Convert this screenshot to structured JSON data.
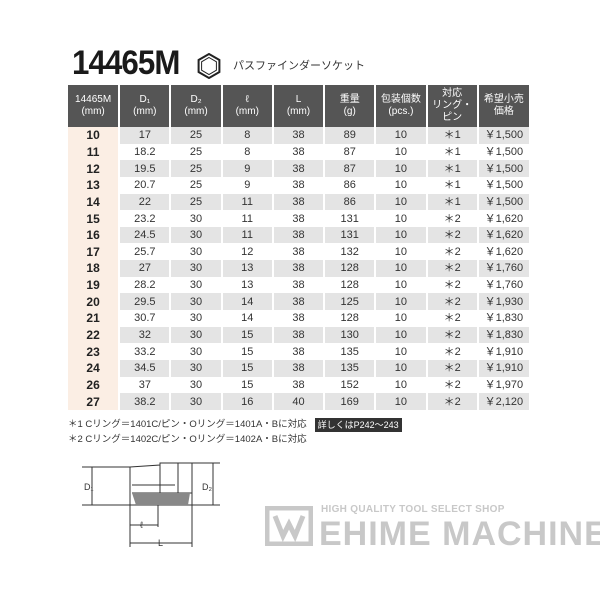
{
  "title": "14465M",
  "subtitle": "パスファインダーソケット",
  "icons": {
    "hex": "hexagon-socket-icon"
  },
  "table": {
    "headers": [
      [
        "14465M",
        "(mm)"
      ],
      [
        "D₁",
        "(mm)"
      ],
      [
        "D₂",
        "(mm)"
      ],
      [
        "ℓ",
        "(mm)"
      ],
      [
        "L",
        "(mm)"
      ],
      [
        "重量",
        "(g)"
      ],
      [
        "包装個数",
        "(pcs.)"
      ],
      [
        "対応",
        "リング・ピン"
      ],
      [
        "希望小売",
        "価格"
      ]
    ],
    "rows": [
      [
        "10",
        "17",
        "25",
        "8",
        "38",
        "89",
        "10",
        "＊1",
        "￥1,500"
      ],
      [
        "11",
        "18.2",
        "25",
        "8",
        "38",
        "87",
        "10",
        "＊1",
        "￥1,500"
      ],
      [
        "12",
        "19.5",
        "25",
        "9",
        "38",
        "87",
        "10",
        "＊1",
        "￥1,500"
      ],
      [
        "13",
        "20.7",
        "25",
        "9",
        "38",
        "86",
        "10",
        "＊1",
        "￥1,500"
      ],
      [
        "14",
        "22",
        "25",
        "11",
        "38",
        "86",
        "10",
        "＊1",
        "￥1,500"
      ],
      [
        "15",
        "23.2",
        "30",
        "11",
        "38",
        "131",
        "10",
        "＊2",
        "￥1,620"
      ],
      [
        "16",
        "24.5",
        "30",
        "11",
        "38",
        "131",
        "10",
        "＊2",
        "￥1,620"
      ],
      [
        "17",
        "25.7",
        "30",
        "12",
        "38",
        "132",
        "10",
        "＊2",
        "￥1,620"
      ],
      [
        "18",
        "27",
        "30",
        "13",
        "38",
        "128",
        "10",
        "＊2",
        "￥1,760"
      ],
      [
        "19",
        "28.2",
        "30",
        "13",
        "38",
        "128",
        "10",
        "＊2",
        "￥1,760"
      ],
      [
        "20",
        "29.5",
        "30",
        "14",
        "38",
        "125",
        "10",
        "＊2",
        "￥1,930"
      ],
      [
        "21",
        "30.7",
        "30",
        "14",
        "38",
        "128",
        "10",
        "＊2",
        "￥1,830"
      ],
      [
        "22",
        "32",
        "30",
        "15",
        "38",
        "130",
        "10",
        "＊2",
        "￥1,830"
      ],
      [
        "23",
        "33.2",
        "30",
        "15",
        "38",
        "135",
        "10",
        "＊2",
        "￥1,910"
      ],
      [
        "24",
        "34.5",
        "30",
        "15",
        "38",
        "135",
        "10",
        "＊2",
        "￥1,910"
      ],
      [
        "26",
        "37",
        "30",
        "15",
        "38",
        "152",
        "10",
        "＊2",
        "￥1,970"
      ],
      [
        "27",
        "38.2",
        "30",
        "16",
        "40",
        "169",
        "10",
        "＊2",
        "￥2,120"
      ]
    ]
  },
  "notes": [
    "＊1 Cリング＝1401C/ピン・Oリング＝1401A・Bに対応",
    "＊2 Cリング＝1402C/ピン・Oリング＝1402A・Bに対応"
  ],
  "reference": "詳しくはP242～243",
  "diagram": {
    "d1": "D₁",
    "d2": "D₂",
    "l": "ℓ",
    "L": "L"
  },
  "logo": {
    "tagline": "HIGH QUALITY TOOL SELECT SHOP",
    "name": "EHIME MACHINE"
  }
}
